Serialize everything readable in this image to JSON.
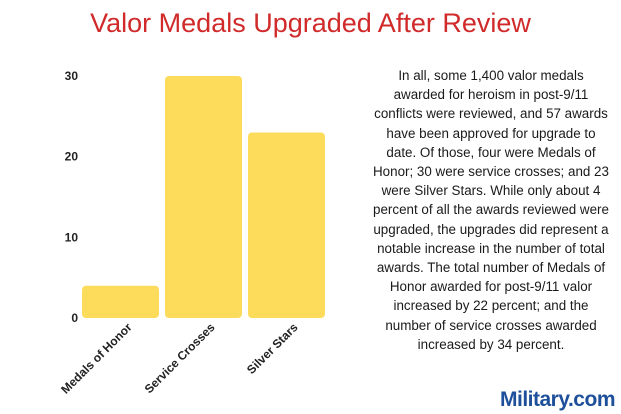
{
  "chart_data": {
    "type": "bar",
    "title": "Valor Medals Upgraded After Review",
    "categories": [
      "Medals of Honor",
      "Service Crosses",
      "Silver Stars"
    ],
    "values": [
      4,
      30,
      23
    ],
    "xlabel": "",
    "ylabel": "",
    "ylim": [
      0,
      30
    ],
    "yticks": [
      0,
      10,
      20,
      30
    ],
    "grid": false,
    "bar_color": "#fddc5c"
  },
  "description": "In all, some 1,400 valor medals awarded for heroism in post-9/11 conflicts were reviewed, and 57 awards have been approved for upgrade to date. Of those, four were Medals of Honor; 30 were service crosses; and 23 were Silver Stars. While only about 4 percent of all the awards reviewed were upgraded, the upgrades did represent a notable increase in the number of total awards. The total number of Medals of Honor awarded for post-9/11 valor increased by 22 percent; and the number of service crosses awarded increased by 34 percent.",
  "logo": {
    "text": "Military.com",
    "color": "#1d4f9a"
  },
  "colors": {
    "title": "#d02a2a"
  }
}
